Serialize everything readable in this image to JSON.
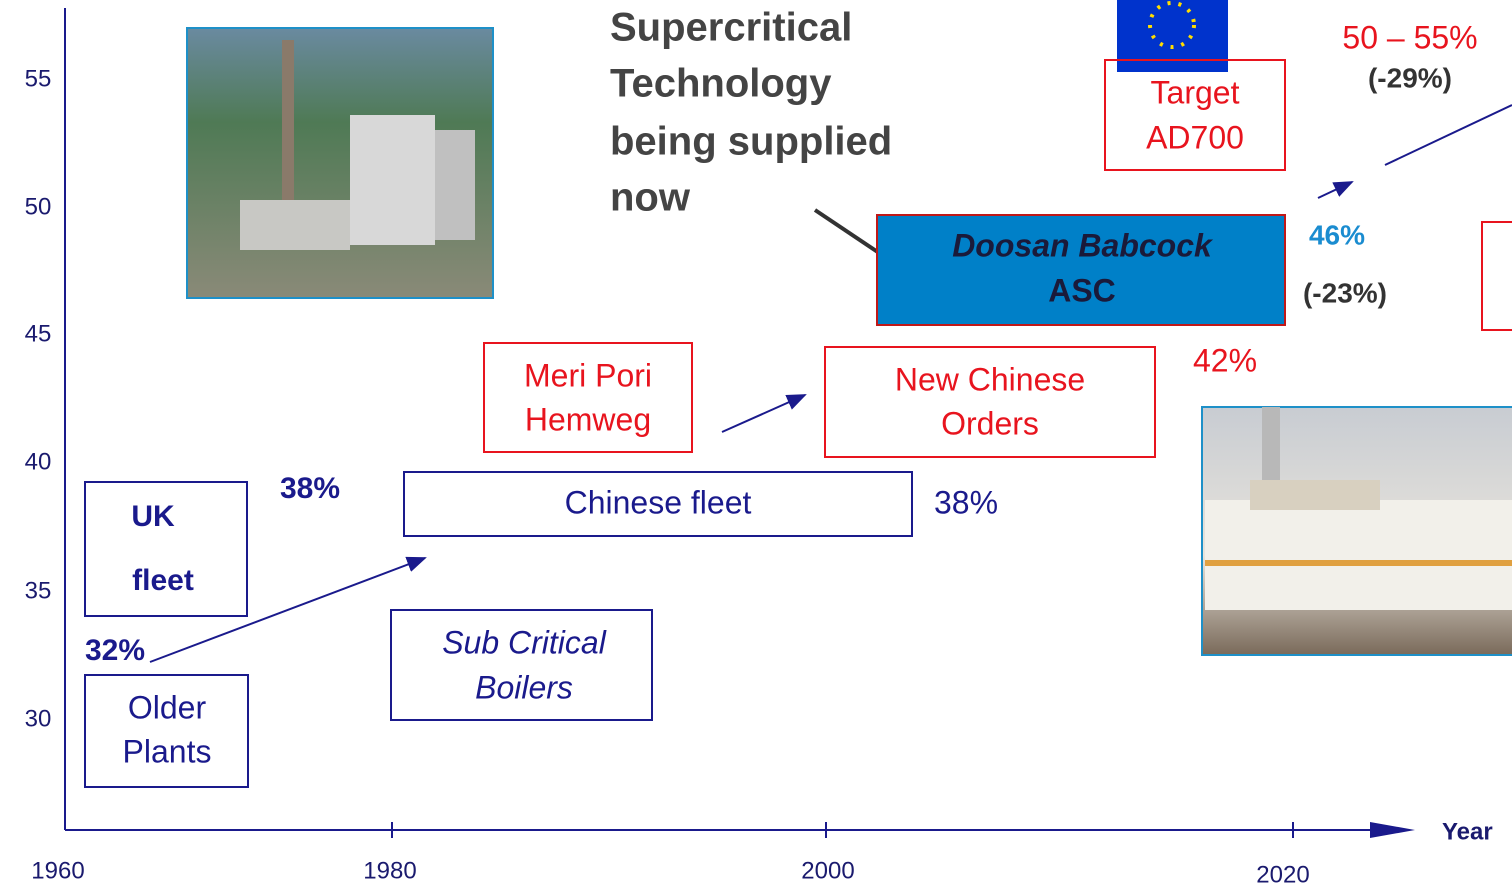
{
  "y_axis": {
    "ticks": [
      55,
      50,
      45,
      40,
      35,
      30
    ]
  },
  "x_axis": {
    "ticks": [
      1960,
      1980,
      2000,
      2020
    ],
    "label": "Year"
  },
  "headline": {
    "lines": [
      "Supercritical",
      "Technology",
      "being supplied",
      "now"
    ]
  },
  "boxes": {
    "target": {
      "lines": [
        "Target",
        "AD700"
      ]
    },
    "doosan": {
      "lines": [
        "Doosan Babcock",
        "ASC"
      ]
    },
    "meri_pori": {
      "lines": [
        "Meri Pori",
        "Hemweg"
      ]
    },
    "new_chinese": {
      "lines": [
        "New Chinese",
        "Orders"
      ]
    },
    "chinese_fleet": {
      "lines": [
        "Chinese fleet"
      ]
    },
    "uk_fleet": {
      "lines": [
        "UK",
        "fleet"
      ]
    },
    "sub_critical": {
      "lines": [
        "Sub Critical",
        "Boilers"
      ]
    },
    "older_plants": {
      "lines": [
        "Older",
        "Plants"
      ]
    }
  },
  "annotations": {
    "target_range": "50 – 55%",
    "target_reduction": "(-29%)",
    "asc_efficiency": "46%",
    "asc_reduction": "(-23%)",
    "new_orders_efficiency": "42%",
    "chinese_fleet_efficiency": "38%",
    "uk_fleet_efficiency": "38%",
    "older_efficiency": "32%"
  }
}
